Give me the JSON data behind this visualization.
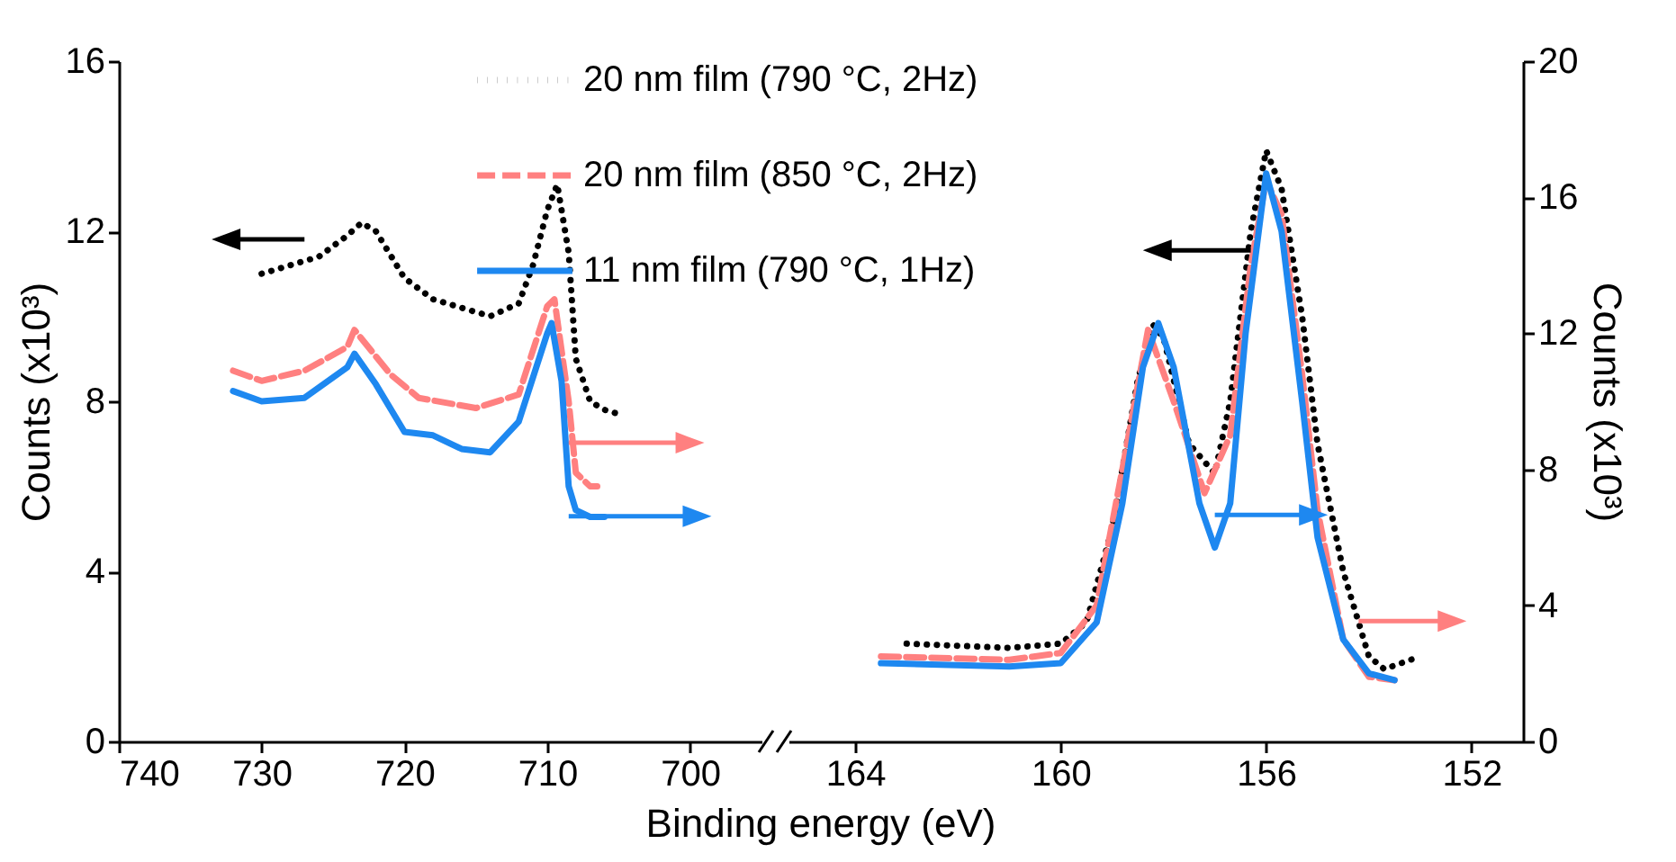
{
  "chart_data": [
    {
      "type": "line",
      "xlabel": "Binding energy (eV)",
      "ylabel": "Counts (x10³)",
      "xlim": [
        740,
        695
      ],
      "xticks": [
        740,
        730,
        720,
        710,
        700
      ],
      "ylim": [
        0,
        16
      ],
      "yticks": [
        0,
        4,
        8,
        12,
        16
      ],
      "y2lim": [
        0,
        20
      ],
      "legend": false,
      "series": [
        {
          "color": "#000000",
          "line_style": "dotted",
          "x": [
            730,
            728,
            726,
            724,
            723,
            722,
            720,
            718,
            716,
            714,
            712,
            711,
            710,
            709.3,
            708.5,
            708,
            707,
            706,
            705
          ],
          "values": [
            11.0,
            11.2,
            11.4,
            11.9,
            12.2,
            12.0,
            10.9,
            10.4,
            10.2,
            10.0,
            10.3,
            11.2,
            12.5,
            13.1,
            11.5,
            9.0,
            8.0,
            7.8,
            7.7
          ]
        },
        {
          "color": "#ff8080",
          "line_style": "dashed",
          "axis": "y2",
          "x": [
            732,
            730,
            727,
            724,
            723.5,
            721,
            719,
            715,
            712,
            710,
            709.5,
            708.5,
            708,
            707,
            706.5
          ],
          "values": [
            10.9,
            10.6,
            10.9,
            11.6,
            12.1,
            10.8,
            10.1,
            9.8,
            10.2,
            12.8,
            13.0,
            10.0,
            7.9,
            7.5,
            7.5
          ]
        },
        {
          "color": "#1e88f0",
          "line_style": "solid",
          "axis": "y2",
          "x": [
            732,
            730,
            727,
            724,
            723.5,
            722,
            720,
            718,
            716,
            714,
            712,
            710,
            709.7,
            709,
            708.5,
            708,
            707,
            706
          ],
          "values": [
            10.3,
            10.0,
            10.1,
            11.0,
            11.4,
            10.5,
            9.1,
            9.0,
            8.6,
            8.5,
            9.4,
            12.0,
            12.3,
            10.6,
            7.5,
            6.8,
            6.6,
            6.6
          ]
        }
      ]
    },
    {
      "type": "line",
      "xlim": [
        165.3,
        151
      ],
      "xticks": [
        164,
        160,
        156,
        152
      ],
      "ylim": [
        0,
        16
      ],
      "y2lim": [
        0,
        20
      ],
      "y2ticks": [
        0,
        4,
        8,
        12,
        16,
        20
      ],
      "y2label": "Counts (x10³)",
      "legend": "top",
      "series": [
        {
          "name": "20 nm film (790 °C, 2Hz)",
          "color": "#000000",
          "line_style": "dotted",
          "x": [
            163,
            161,
            160,
            159.5,
            159,
            158.5,
            158.2,
            158,
            157.5,
            157,
            156.7,
            156.3,
            156,
            155.7,
            155.3,
            155,
            154.5,
            154,
            153.7,
            153
          ],
          "values": [
            2.3,
            2.2,
            2.3,
            2.8,
            5.0,
            8.5,
            9.8,
            9.5,
            7.0,
            6.3,
            8.0,
            12.0,
            13.9,
            13.0,
            10.0,
            7.0,
            4.0,
            2.0,
            1.7,
            2.0
          ]
        },
        {
          "name": "20 nm film (850 °C, 2Hz)",
          "color": "#ff8080",
          "line_style": "dashed",
          "axis": "y2",
          "x": [
            163.5,
            161,
            160,
            159.3,
            158.8,
            158.3,
            157.8,
            157.2,
            156.7,
            156.3,
            156,
            155.7,
            155.3,
            155,
            154.5,
            154,
            153.5
          ],
          "values": [
            2.5,
            2.4,
            2.6,
            4.0,
            8.0,
            12.1,
            10.0,
            7.3,
            9.0,
            14.0,
            16.5,
            15.5,
            10.8,
            6.8,
            3.0,
            1.9,
            1.8
          ]
        },
        {
          "name": "11 nm film (790 °C, 1Hz)",
          "color": "#1e88f0",
          "line_style": "solid",
          "axis": "y2",
          "x": [
            163.5,
            161,
            160,
            159.3,
            158.8,
            158.4,
            158.1,
            157.8,
            157.3,
            157,
            156.7,
            156.4,
            156,
            155.7,
            155.3,
            155,
            154.5,
            154,
            153.5
          ],
          "values": [
            2.3,
            2.2,
            2.3,
            3.5,
            7.0,
            11.0,
            12.3,
            11.0,
            7.0,
            5.7,
            7.0,
            12.0,
            16.7,
            15.0,
            10.0,
            6.0,
            3.0,
            2.0,
            1.8
          ]
        }
      ]
    }
  ]
}
